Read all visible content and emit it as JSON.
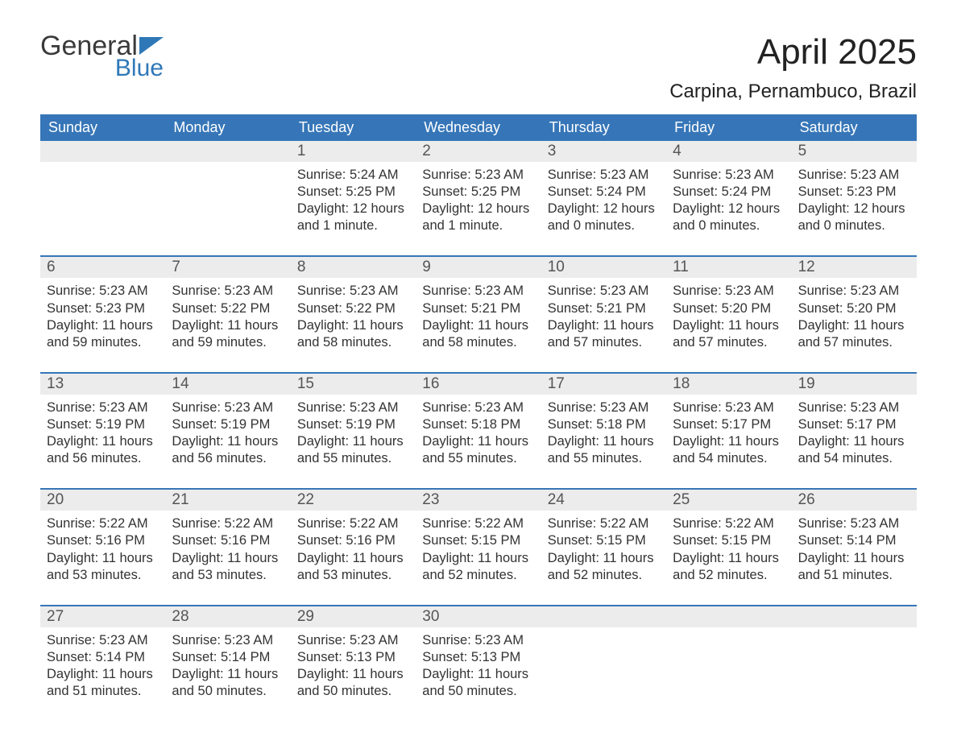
{
  "logo": {
    "line1": "General",
    "line2": "Blue"
  },
  "title": "April 2025",
  "location": "Carpina, Pernambuco, Brazil",
  "colors": {
    "header_bg": "#3676b8",
    "header_text": "#ffffff",
    "band_bg": "#ececec",
    "week_divider": "#3676b8",
    "logo_blue": "#2f78b7",
    "text": "#333333"
  },
  "dow": [
    "Sunday",
    "Monday",
    "Tuesday",
    "Wednesday",
    "Thursday",
    "Friday",
    "Saturday"
  ],
  "weeks": [
    [
      null,
      null,
      {
        "n": "1",
        "sunrise": "Sunrise: 5:24 AM",
        "sunset": "Sunset: 5:25 PM",
        "daylight": "Daylight: 12 hours and 1 minute."
      },
      {
        "n": "2",
        "sunrise": "Sunrise: 5:23 AM",
        "sunset": "Sunset: 5:25 PM",
        "daylight": "Daylight: 12 hours and 1 minute."
      },
      {
        "n": "3",
        "sunrise": "Sunrise: 5:23 AM",
        "sunset": "Sunset: 5:24 PM",
        "daylight": "Daylight: 12 hours and 0 minutes."
      },
      {
        "n": "4",
        "sunrise": "Sunrise: 5:23 AM",
        "sunset": "Sunset: 5:24 PM",
        "daylight": "Daylight: 12 hours and 0 minutes."
      },
      {
        "n": "5",
        "sunrise": "Sunrise: 5:23 AM",
        "sunset": "Sunset: 5:23 PM",
        "daylight": "Daylight: 12 hours and 0 minutes."
      }
    ],
    [
      {
        "n": "6",
        "sunrise": "Sunrise: 5:23 AM",
        "sunset": "Sunset: 5:23 PM",
        "daylight": "Daylight: 11 hours and 59 minutes."
      },
      {
        "n": "7",
        "sunrise": "Sunrise: 5:23 AM",
        "sunset": "Sunset: 5:22 PM",
        "daylight": "Daylight: 11 hours and 59 minutes."
      },
      {
        "n": "8",
        "sunrise": "Sunrise: 5:23 AM",
        "sunset": "Sunset: 5:22 PM",
        "daylight": "Daylight: 11 hours and 58 minutes."
      },
      {
        "n": "9",
        "sunrise": "Sunrise: 5:23 AM",
        "sunset": "Sunset: 5:21 PM",
        "daylight": "Daylight: 11 hours and 58 minutes."
      },
      {
        "n": "10",
        "sunrise": "Sunrise: 5:23 AM",
        "sunset": "Sunset: 5:21 PM",
        "daylight": "Daylight: 11 hours and 57 minutes."
      },
      {
        "n": "11",
        "sunrise": "Sunrise: 5:23 AM",
        "sunset": "Sunset: 5:20 PM",
        "daylight": "Daylight: 11 hours and 57 minutes."
      },
      {
        "n": "12",
        "sunrise": "Sunrise: 5:23 AM",
        "sunset": "Sunset: 5:20 PM",
        "daylight": "Daylight: 11 hours and 57 minutes."
      }
    ],
    [
      {
        "n": "13",
        "sunrise": "Sunrise: 5:23 AM",
        "sunset": "Sunset: 5:19 PM",
        "daylight": "Daylight: 11 hours and 56 minutes."
      },
      {
        "n": "14",
        "sunrise": "Sunrise: 5:23 AM",
        "sunset": "Sunset: 5:19 PM",
        "daylight": "Daylight: 11 hours and 56 minutes."
      },
      {
        "n": "15",
        "sunrise": "Sunrise: 5:23 AM",
        "sunset": "Sunset: 5:19 PM",
        "daylight": "Daylight: 11 hours and 55 minutes."
      },
      {
        "n": "16",
        "sunrise": "Sunrise: 5:23 AM",
        "sunset": "Sunset: 5:18 PM",
        "daylight": "Daylight: 11 hours and 55 minutes."
      },
      {
        "n": "17",
        "sunrise": "Sunrise: 5:23 AM",
        "sunset": "Sunset: 5:18 PM",
        "daylight": "Daylight: 11 hours and 55 minutes."
      },
      {
        "n": "18",
        "sunrise": "Sunrise: 5:23 AM",
        "sunset": "Sunset: 5:17 PM",
        "daylight": "Daylight: 11 hours and 54 minutes."
      },
      {
        "n": "19",
        "sunrise": "Sunrise: 5:23 AM",
        "sunset": "Sunset: 5:17 PM",
        "daylight": "Daylight: 11 hours and 54 minutes."
      }
    ],
    [
      {
        "n": "20",
        "sunrise": "Sunrise: 5:22 AM",
        "sunset": "Sunset: 5:16 PM",
        "daylight": "Daylight: 11 hours and 53 minutes."
      },
      {
        "n": "21",
        "sunrise": "Sunrise: 5:22 AM",
        "sunset": "Sunset: 5:16 PM",
        "daylight": "Daylight: 11 hours and 53 minutes."
      },
      {
        "n": "22",
        "sunrise": "Sunrise: 5:22 AM",
        "sunset": "Sunset: 5:16 PM",
        "daylight": "Daylight: 11 hours and 53 minutes."
      },
      {
        "n": "23",
        "sunrise": "Sunrise: 5:22 AM",
        "sunset": "Sunset: 5:15 PM",
        "daylight": "Daylight: 11 hours and 52 minutes."
      },
      {
        "n": "24",
        "sunrise": "Sunrise: 5:22 AM",
        "sunset": "Sunset: 5:15 PM",
        "daylight": "Daylight: 11 hours and 52 minutes."
      },
      {
        "n": "25",
        "sunrise": "Sunrise: 5:22 AM",
        "sunset": "Sunset: 5:15 PM",
        "daylight": "Daylight: 11 hours and 52 minutes."
      },
      {
        "n": "26",
        "sunrise": "Sunrise: 5:23 AM",
        "sunset": "Sunset: 5:14 PM",
        "daylight": "Daylight: 11 hours and 51 minutes."
      }
    ],
    [
      {
        "n": "27",
        "sunrise": "Sunrise: 5:23 AM",
        "sunset": "Sunset: 5:14 PM",
        "daylight": "Daylight: 11 hours and 51 minutes."
      },
      {
        "n": "28",
        "sunrise": "Sunrise: 5:23 AM",
        "sunset": "Sunset: 5:14 PM",
        "daylight": "Daylight: 11 hours and 50 minutes."
      },
      {
        "n": "29",
        "sunrise": "Sunrise: 5:23 AM",
        "sunset": "Sunset: 5:13 PM",
        "daylight": "Daylight: 11 hours and 50 minutes."
      },
      {
        "n": "30",
        "sunrise": "Sunrise: 5:23 AM",
        "sunset": "Sunset: 5:13 PM",
        "daylight": "Daylight: 11 hours and 50 minutes."
      },
      null,
      null,
      null
    ]
  ]
}
